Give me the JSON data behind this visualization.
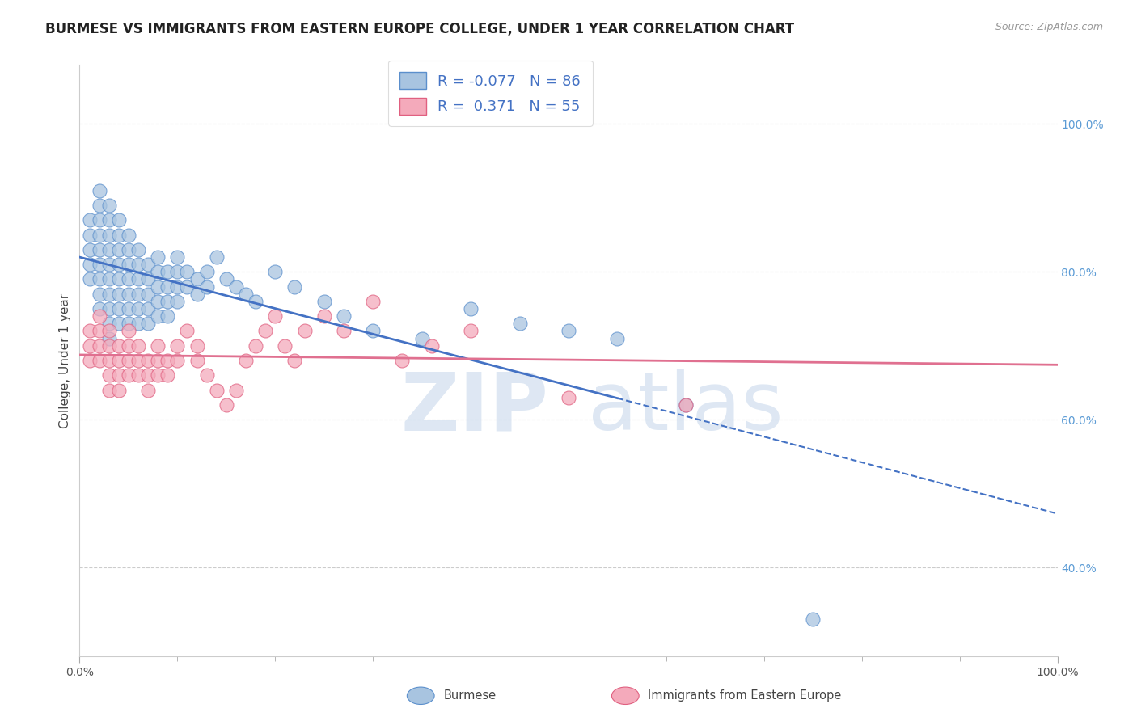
{
  "title": "BURMESE VS IMMIGRANTS FROM EASTERN EUROPE COLLEGE, UNDER 1 YEAR CORRELATION CHART",
  "source": "Source: ZipAtlas.com",
  "ylabel": "College, Under 1 year",
  "xlim": [
    0.0,
    1.0
  ],
  "ylim": [
    0.28,
    1.08
  ],
  "blue_R": -0.077,
  "blue_N": 86,
  "pink_R": 0.371,
  "pink_N": 55,
  "blue_scatter_color": "#a8c4e0",
  "blue_edge_color": "#5b8fcc",
  "pink_scatter_color": "#f4aabb",
  "pink_edge_color": "#e06080",
  "blue_line_color": "#4472C4",
  "pink_line_color": "#e07090",
  "background": "#ffffff",
  "grid_color": "#cccccc",
  "watermark_zip": "ZIP",
  "watermark_atlas": "atlas",
  "right_tick_color": "#5b9bd5",
  "legend_labels": [
    "Burmese",
    "Immigrants from Eastern Europe"
  ],
  "blue_x": [
    0.01,
    0.01,
    0.01,
    0.01,
    0.01,
    0.02,
    0.02,
    0.02,
    0.02,
    0.02,
    0.02,
    0.02,
    0.02,
    0.02,
    0.03,
    0.03,
    0.03,
    0.03,
    0.03,
    0.03,
    0.03,
    0.03,
    0.03,
    0.03,
    0.04,
    0.04,
    0.04,
    0.04,
    0.04,
    0.04,
    0.04,
    0.04,
    0.05,
    0.05,
    0.05,
    0.05,
    0.05,
    0.05,
    0.05,
    0.06,
    0.06,
    0.06,
    0.06,
    0.06,
    0.06,
    0.07,
    0.07,
    0.07,
    0.07,
    0.07,
    0.08,
    0.08,
    0.08,
    0.08,
    0.08,
    0.09,
    0.09,
    0.09,
    0.09,
    0.1,
    0.1,
    0.1,
    0.1,
    0.11,
    0.11,
    0.12,
    0.12,
    0.13,
    0.13,
    0.14,
    0.15,
    0.16,
    0.17,
    0.18,
    0.2,
    0.22,
    0.25,
    0.27,
    0.3,
    0.35,
    0.4,
    0.45,
    0.5,
    0.55,
    0.62,
    0.75
  ],
  "blue_y": [
    0.87,
    0.85,
    0.83,
    0.81,
    0.79,
    0.91,
    0.89,
    0.87,
    0.85,
    0.83,
    0.81,
    0.79,
    0.77,
    0.75,
    0.89,
    0.87,
    0.85,
    0.83,
    0.81,
    0.79,
    0.77,
    0.75,
    0.73,
    0.71,
    0.87,
    0.85,
    0.83,
    0.81,
    0.79,
    0.77,
    0.75,
    0.73,
    0.85,
    0.83,
    0.81,
    0.79,
    0.77,
    0.75,
    0.73,
    0.83,
    0.81,
    0.79,
    0.77,
    0.75,
    0.73,
    0.81,
    0.79,
    0.77,
    0.75,
    0.73,
    0.82,
    0.8,
    0.78,
    0.76,
    0.74,
    0.8,
    0.78,
    0.76,
    0.74,
    0.82,
    0.8,
    0.78,
    0.76,
    0.8,
    0.78,
    0.79,
    0.77,
    0.8,
    0.78,
    0.82,
    0.79,
    0.78,
    0.77,
    0.76,
    0.8,
    0.78,
    0.76,
    0.74,
    0.72,
    0.71,
    0.75,
    0.73,
    0.72,
    0.71,
    0.62,
    0.33
  ],
  "pink_x": [
    0.01,
    0.01,
    0.01,
    0.02,
    0.02,
    0.02,
    0.02,
    0.03,
    0.03,
    0.03,
    0.03,
    0.03,
    0.04,
    0.04,
    0.04,
    0.04,
    0.05,
    0.05,
    0.05,
    0.05,
    0.06,
    0.06,
    0.06,
    0.07,
    0.07,
    0.07,
    0.08,
    0.08,
    0.08,
    0.09,
    0.09,
    0.1,
    0.1,
    0.11,
    0.12,
    0.12,
    0.13,
    0.14,
    0.15,
    0.16,
    0.17,
    0.18,
    0.19,
    0.2,
    0.21,
    0.22,
    0.23,
    0.25,
    0.27,
    0.3,
    0.33,
    0.36,
    0.4,
    0.5,
    0.62
  ],
  "pink_y": [
    0.72,
    0.7,
    0.68,
    0.74,
    0.72,
    0.7,
    0.68,
    0.72,
    0.7,
    0.68,
    0.66,
    0.64,
    0.7,
    0.68,
    0.66,
    0.64,
    0.72,
    0.7,
    0.68,
    0.66,
    0.7,
    0.68,
    0.66,
    0.68,
    0.66,
    0.64,
    0.7,
    0.68,
    0.66,
    0.68,
    0.66,
    0.7,
    0.68,
    0.72,
    0.7,
    0.68,
    0.66,
    0.64,
    0.62,
    0.64,
    0.68,
    0.7,
    0.72,
    0.74,
    0.7,
    0.68,
    0.72,
    0.74,
    0.72,
    0.76,
    0.68,
    0.7,
    0.72,
    0.63,
    0.62
  ]
}
